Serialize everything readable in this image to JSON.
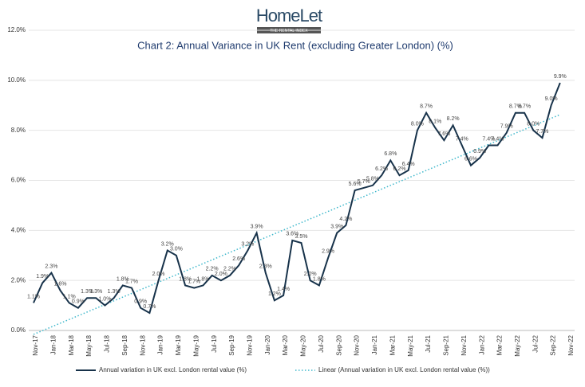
{
  "header": {
    "brand": "HomeLet",
    "tagline": "THE RENTAL INDEX"
  },
  "chart_data": {
    "type": "line",
    "title": "Chart 2: Annual Variance in UK Rent (excluding Greater London) (%)",
    "categories": [
      "Nov-17",
      null,
      "Jan-18",
      null,
      "Mar-18",
      null,
      "May-18",
      null,
      "Jul-18",
      null,
      "Sep-18",
      null,
      "Nov-18",
      null,
      "Jan-19",
      null,
      "Mar-19",
      null,
      "May-19",
      null,
      "Jul-19",
      null,
      "Sep-19",
      null,
      "Nov-19",
      null,
      "Jan-20",
      null,
      "Mar-20",
      null,
      "May-20",
      null,
      "Jul-20",
      null,
      "Sep-20",
      null,
      "Nov-20",
      null,
      "Jan-21",
      null,
      "Mar-21",
      null,
      "May-21",
      null,
      "Jul-21",
      null,
      "Sep-21",
      null,
      "Nov-21",
      null,
      "Jan-22",
      null,
      "Mar-22",
      null,
      "May-22",
      null,
      "Jul-22",
      null,
      "Sep-22",
      null,
      "Nov-22"
    ],
    "series": [
      {
        "name": "Annual variation in UK excl. London rental value (%)",
        "color": "#17324a",
        "values": [
          1.1,
          1.9,
          2.3,
          1.6,
          1.1,
          0.9,
          1.3,
          1.3,
          1.0,
          1.3,
          1.8,
          1.7,
          0.9,
          0.7,
          2.0,
          3.2,
          3.0,
          1.8,
          1.7,
          1.8,
          2.2,
          2.0,
          2.2,
          2.6,
          3.2,
          3.9,
          2.3,
          1.2,
          1.4,
          3.6,
          3.5,
          2.0,
          1.8,
          2.9,
          3.9,
          4.2,
          5.6,
          5.7,
          5.8,
          6.2,
          6.8,
          6.2,
          6.4,
          8.0,
          8.7,
          8.1,
          7.6,
          8.2,
          7.4,
          6.6,
          6.9,
          7.4,
          7.4,
          7.9,
          8.7,
          8.7,
          8.0,
          7.7,
          9.0,
          9.9,
          null
        ],
        "value_labels": [
          "1.1%",
          "1.9%",
          "2.3%",
          "1.6%",
          "1.1%",
          "0.9%",
          "1.3%",
          "1.3%",
          "1.0%",
          "1.3%",
          "1.8%",
          "1.7%",
          "0.9%",
          "0.7%",
          "2.0%",
          "3.2%",
          "3.0%",
          "1.8%",
          "1.7%",
          "1.8%",
          "2.2%",
          "2.0%",
          "2.2%",
          "2.6%",
          "3.2%",
          "3.9%",
          "2.3%",
          "1.2%",
          "1.4%",
          "3.6%",
          "3.5%",
          "2.0%",
          "1.8%",
          "2.9%",
          "3.9%",
          "4.2%",
          "5.6%",
          "5.7%",
          "5.8%",
          "6.2%",
          "6.8%",
          "6.2%",
          "6.4%",
          "8.0%",
          "8.7%",
          "8.1%",
          "7.6%",
          "8.2%",
          "7.4%",
          "6.6%",
          "6.9%",
          "7.4%",
          "7.4%",
          "7.9%",
          "8.7%",
          "8.7%",
          "8.0%",
          "7.7%",
          "9.0%",
          "9.9%",
          null
        ]
      }
    ],
    "trendline": {
      "name": "Linear (Annual variation in UK excl. London rental value (%))",
      "color": "#3fb8cc"
    },
    "ylim": [
      0,
      12
    ],
    "yticks": [
      {
        "value": 0,
        "label": "0.0%"
      },
      {
        "value": 2,
        "label": "2.0%"
      },
      {
        "value": 4,
        "label": "4.0%"
      },
      {
        "value": 6,
        "label": "6.0%"
      },
      {
        "value": 8,
        "label": "8.0%"
      },
      {
        "value": 10,
        "label": "10.0%"
      },
      {
        "value": 12,
        "label": "12.0%"
      }
    ],
    "grid": true
  }
}
